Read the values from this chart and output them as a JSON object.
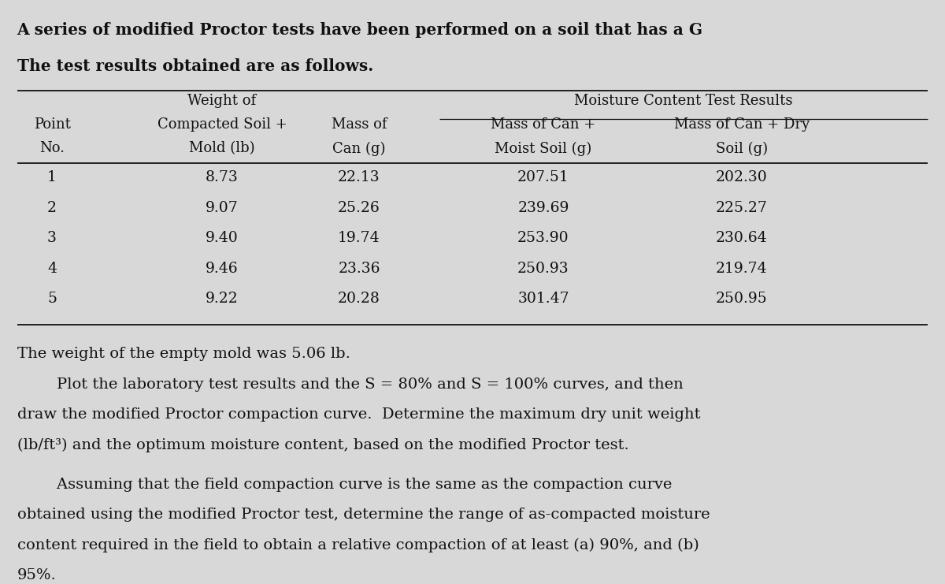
{
  "bg_color": "#d8d8d8",
  "text_color": "#111111",
  "table_data": [
    [
      "1",
      "8.73",
      "22.13",
      "207.51",
      "202.30"
    ],
    [
      "2",
      "9.07",
      "25.26",
      "239.69",
      "225.27"
    ],
    [
      "3",
      "9.40",
      "19.74",
      "253.90",
      "230.64"
    ],
    [
      "4",
      "9.46",
      "23.36",
      "250.93",
      "219.74"
    ],
    [
      "5",
      "9.22",
      "20.28",
      "301.47",
      "250.95"
    ]
  ],
  "mold_text": "The weight of the empty mold was 5.06 lb.",
  "para1_indent": "        Plot the laboratory test results and the S = 80% and S = 100% curves, and then",
  "para1_line2": "draw the modified Proctor compaction curve.  Determine the maximum dry unit weight",
  "para1_line3": "(lb/ft³) and the optimum moisture content, based on the modified Proctor test.",
  "para2_indent": "        Assuming that the field compaction curve is the same as the compaction curve",
  "para2_line2": "obtained using the modified Proctor test, determine the range of as-compacted moisture",
  "para2_line3": "content required in the field to obtain a relative compaction of at least (a) 90%, and (b)",
  "para2_line4": "95%.",
  "fs_title": 14.5,
  "fs_table_header": 13.0,
  "fs_table_data": 13.5,
  "fs_body": 14.0,
  "lmargin": 0.018,
  "rmargin": 0.982
}
